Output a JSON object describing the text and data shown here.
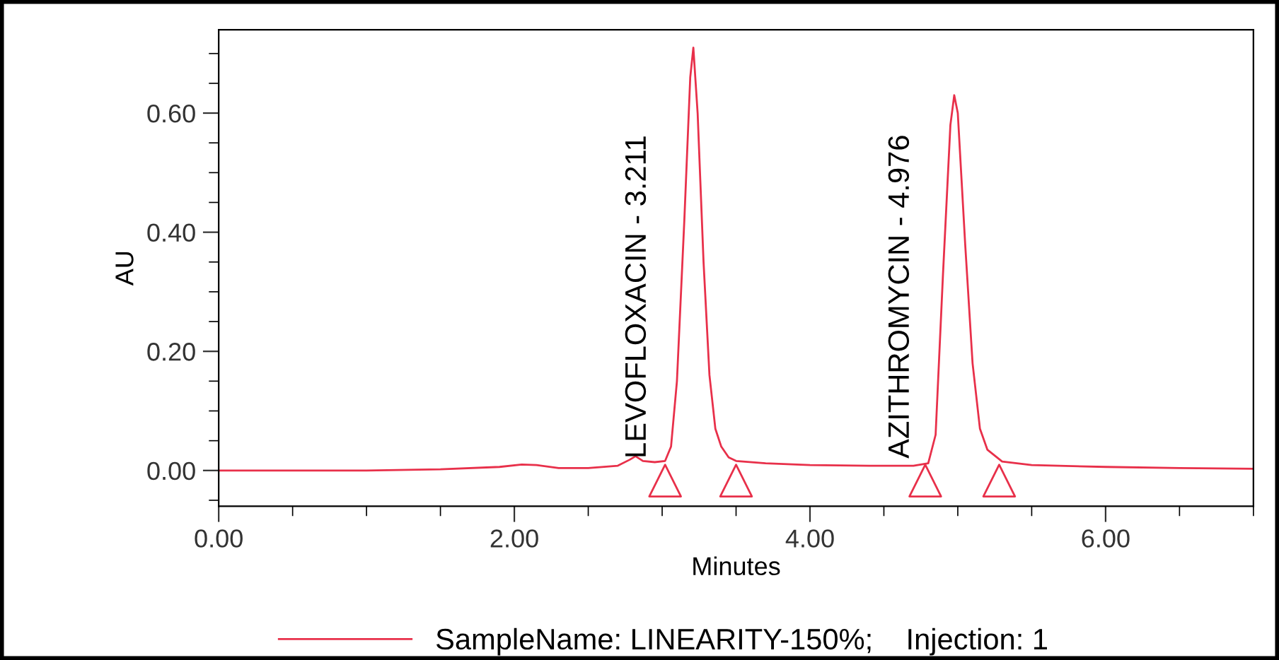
{
  "chart_data": {
    "type": "line",
    "xlabel": "Minutes",
    "ylabel": "AU",
    "xlim": [
      0,
      7.0
    ],
    "ylim": [
      -0.06,
      0.74
    ],
    "xticks": [
      {
        "value": 0,
        "label": "0.00"
      },
      {
        "value": 0.5,
        "label": null
      },
      {
        "value": 1.0,
        "label": null
      },
      {
        "value": 1.5,
        "label": null
      },
      {
        "value": 2,
        "label": "2.00"
      },
      {
        "value": 2.5,
        "label": null
      },
      {
        "value": 3.0,
        "label": null
      },
      {
        "value": 3.5,
        "label": null
      },
      {
        "value": 4,
        "label": "4.00"
      },
      {
        "value": 4.5,
        "label": null
      },
      {
        "value": 5.0,
        "label": null
      },
      {
        "value": 5.5,
        "label": null
      },
      {
        "value": 6,
        "label": "6.00"
      },
      {
        "value": 6.5,
        "label": null
      },
      {
        "value": 7.0,
        "label": null
      }
    ],
    "yticks": [
      {
        "value": -0.05,
        "label": null
      },
      {
        "value": 0,
        "label": "0.00"
      },
      {
        "value": 0.05,
        "label": null
      },
      {
        "value": 0.1,
        "label": null
      },
      {
        "value": 0.15,
        "label": null
      },
      {
        "value": 0.2,
        "label": "0.20"
      },
      {
        "value": 0.25,
        "label": null
      },
      {
        "value": 0.3,
        "label": null
      },
      {
        "value": 0.35,
        "label": null
      },
      {
        "value": 0.4,
        "label": "0.40"
      },
      {
        "value": 0.45,
        "label": null
      },
      {
        "value": 0.5,
        "label": null
      },
      {
        "value": 0.55,
        "label": null
      },
      {
        "value": 0.6,
        "label": "0.60"
      },
      {
        "value": 0.65,
        "label": null
      },
      {
        "value": 0.7,
        "label": null
      }
    ],
    "grid": false,
    "legend": "bottom",
    "series": [
      {
        "name": "SampleName: LINEARITY-150%;    Injection: 1",
        "color": "#e8304a",
        "marker": "none",
        "x": [
          0,
          0.5,
          1.0,
          1.5,
          1.9,
          2.05,
          2.15,
          2.3,
          2.5,
          2.7,
          2.78,
          2.82,
          2.87,
          2.95,
          3.02,
          3.06,
          3.1,
          3.15,
          3.19,
          3.211,
          3.24,
          3.28,
          3.32,
          3.36,
          3.4,
          3.45,
          3.5,
          3.7,
          4.0,
          4.4,
          4.7,
          4.8,
          4.85,
          4.9,
          4.95,
          4.976,
          5.0,
          5.05,
          5.1,
          5.15,
          5.2,
          5.3,
          5.5,
          6.0,
          6.5,
          7.0
        ],
        "values": [
          0,
          0,
          0,
          0.002,
          0.006,
          0.01,
          0.009,
          0.004,
          0.004,
          0.008,
          0.018,
          0.024,
          0.016,
          0.014,
          0.016,
          0.04,
          0.15,
          0.42,
          0.66,
          0.71,
          0.6,
          0.35,
          0.16,
          0.07,
          0.04,
          0.022,
          0.016,
          0.012,
          0.009,
          0.008,
          0.008,
          0.012,
          0.06,
          0.33,
          0.58,
          0.63,
          0.6,
          0.38,
          0.18,
          0.07,
          0.035,
          0.015,
          0.009,
          0.006,
          0.004,
          0.003
        ]
      },
      {
        "type": "scatter",
        "color": "#e8304a",
        "marker": "triangle",
        "x": [
          3.02,
          3.5,
          4.78,
          5.28
        ],
        "values": [
          -0.017,
          -0.017,
          -0.017,
          -0.017
        ]
      }
    ],
    "annotations": [
      {
        "text": "LEVOFLOXACIN - 3.211",
        "x": 2.93,
        "y": 0.02
      },
      {
        "text": "AZITHROMYCIN - 4.976",
        "x": 4.71,
        "y": 0.02
      }
    ]
  }
}
